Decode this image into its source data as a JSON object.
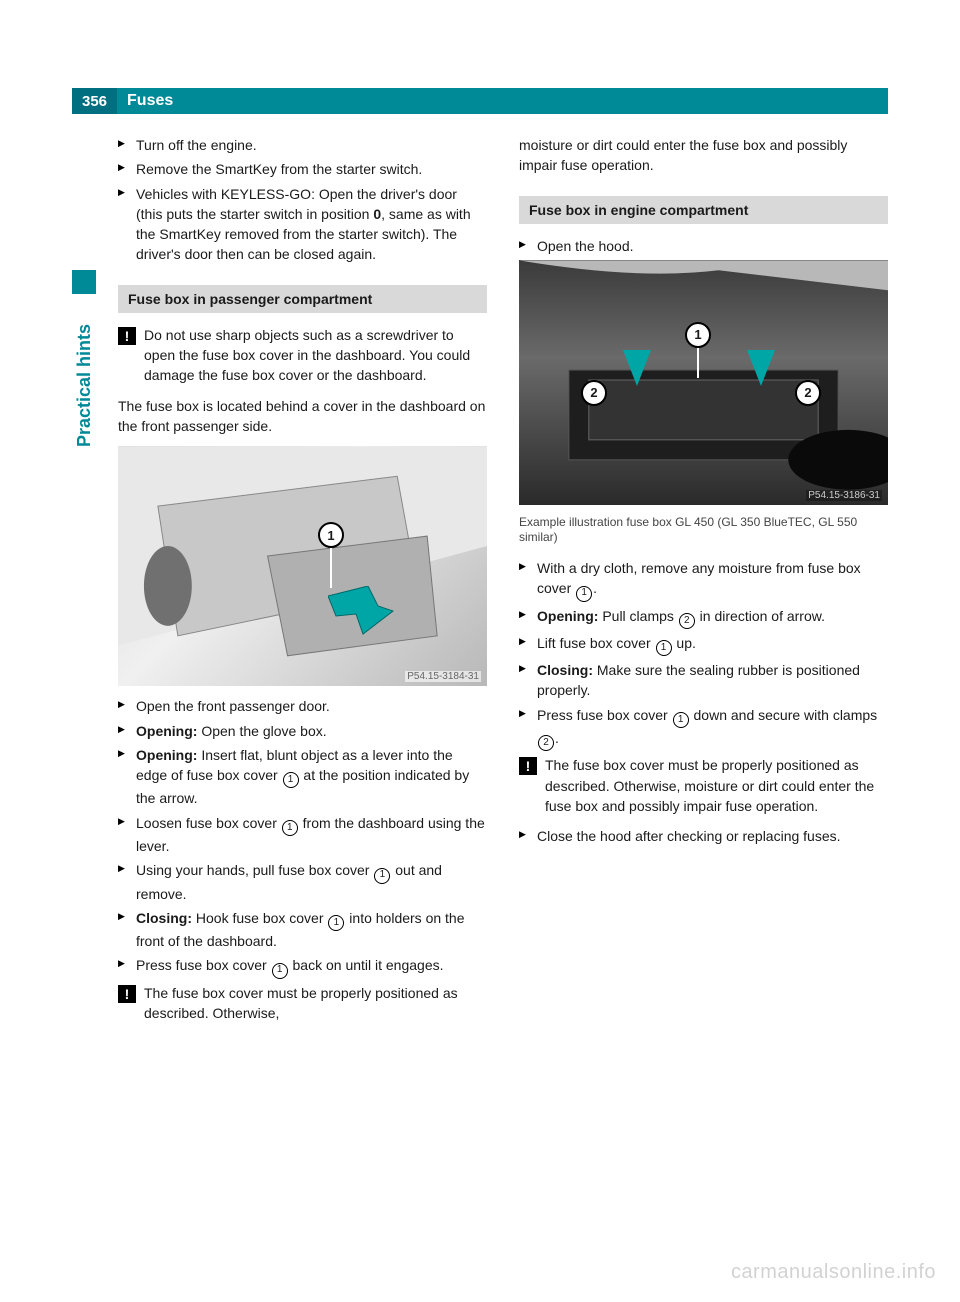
{
  "page_number": "356",
  "header_title": "Fuses",
  "sidebar_label": "Practical hints",
  "colors": {
    "teal": "#008996",
    "teal_dark": "#007080",
    "grey_head": "#d9d9d9",
    "arrow": "#00a6a6"
  },
  "left": {
    "intro_steps": [
      "Turn off the engine.",
      "Remove the SmartKey from the starter switch.",
      "Vehicles with KEYLESS-GO: Open the driver's door (this puts the starter switch in position <b>0</b>, same as with the SmartKey removed from the starter switch). The driver's door then can be closed again."
    ],
    "section_title": "Fuse box in passenger compartment",
    "note1": "Do not use sharp objects such as a screwdriver to open the fuse box cover in the dashboard. You could damage the fuse box cover or the dashboard.",
    "para1": "The fuse box is located behind a cover in the dashboard on the front passenger side.",
    "image1_code": "P54.15-3184-31",
    "steps": [
      "Open the front passenger door.",
      "<b>Opening:</b> Open the glove box.",
      "<b>Opening:</b> Insert flat, blunt object as a lever into the edge of fuse box cover <span class=\"ref-circ\">1</span> at the position indicated by the arrow.",
      "Loosen fuse box cover <span class=\"ref-circ\">1</span> from the dashboard using the lever.",
      "Using your hands, pull fuse box cover <span class=\"ref-circ\">1</span> out and remove.",
      "<b>Closing:</b> Hook fuse box cover <span class=\"ref-circ\">1</span> into holders on the front of the dashboard.",
      "Press fuse box cover <span class=\"ref-circ\">1</span> back on until it engages."
    ],
    "note2": "The fuse box cover must be properly positioned as described. Otherwise,"
  },
  "right": {
    "cont_para": "moisture or dirt could enter the fuse box and possibly impair fuse operation.",
    "section_title": "Fuse box in engine compartment",
    "step_open_hood": "Open the hood.",
    "image2_code": "P54.15-3186-31",
    "caption": "Example illustration fuse box GL 450 (GL 350 BlueTEC, GL 550 similar)",
    "steps": [
      "With a dry cloth, remove any moisture from fuse box cover <span class=\"ref-circ\">1</span>.",
      "<b>Opening:</b> Pull clamps <span class=\"ref-circ\">2</span> in direction of arrow.",
      "Lift fuse box cover <span class=\"ref-circ\">1</span> up.",
      "<b>Closing:</b> Make sure the sealing rubber is positioned properly.",
      "Press fuse box cover <span class=\"ref-circ\">1</span> down and secure with clamps <span class=\"ref-circ\">2</span>."
    ],
    "note": "The fuse box cover must be properly positioned as described. Otherwise, moisture or dirt could enter the fuse box and possibly impair fuse operation.",
    "final_step": "Close the hood after checking or replacing fuses."
  },
  "watermark": "carmanualsonline.info"
}
